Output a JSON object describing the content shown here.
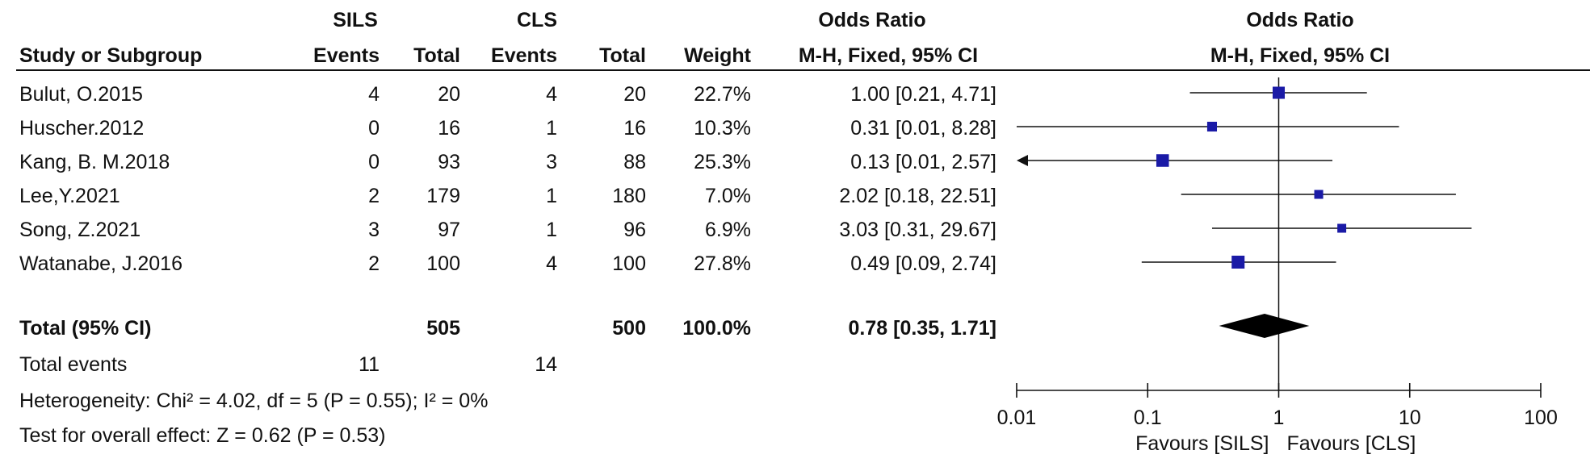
{
  "chart_data": {
    "type": "forest",
    "measure": "Odds Ratio",
    "method": "M-H, Fixed, 95% CI",
    "header": {
      "group1": "SILS",
      "group2": "CLS",
      "study_col": "Study or Subgroup",
      "events": "Events",
      "total": "Total",
      "weight": "Weight",
      "or_title": "Odds Ratio",
      "or_method": "M-H, Fixed, 95% CI"
    },
    "studies": [
      {
        "name": "Bulut, O.2015",
        "e1": "4",
        "n1": "20",
        "e2": "4",
        "n2": "20",
        "weight": "22.7%",
        "ci_text": "1.00 [0.21, 4.71]",
        "or": 1.0,
        "lo": 0.21,
        "hi": 4.71,
        "w": 22.7
      },
      {
        "name": "Huscher.2012",
        "e1": "0",
        "n1": "16",
        "e2": "1",
        "n2": "16",
        "weight": "10.3%",
        "ci_text": "0.31 [0.01, 8.28]",
        "or": 0.31,
        "lo": 0.01,
        "hi": 8.28,
        "w": 10.3
      },
      {
        "name": "Kang, B. M.2018",
        "e1": "0",
        "n1": "93",
        "e2": "3",
        "n2": "88",
        "weight": "25.3%",
        "ci_text": "0.13 [0.01, 2.57]",
        "or": 0.13,
        "lo": 0.01,
        "hi": 2.57,
        "w": 25.3
      },
      {
        "name": "Lee,Y.2021",
        "e1": "2",
        "n1": "179",
        "e2": "1",
        "n2": "180",
        "weight": "7.0%",
        "ci_text": "2.02 [0.18, 22.51]",
        "or": 2.02,
        "lo": 0.18,
        "hi": 22.51,
        "w": 7.0
      },
      {
        "name": "Song, Z.2021",
        "e1": "3",
        "n1": "97",
        "e2": "1",
        "n2": "96",
        "weight": "6.9%",
        "ci_text": "3.03 [0.31, 29.67]",
        "or": 3.03,
        "lo": 0.31,
        "hi": 29.67,
        "w": 6.9
      },
      {
        "name": "Watanabe, J.2016",
        "e1": "2",
        "n1": "100",
        "e2": "4",
        "n2": "100",
        "weight": "27.8%",
        "ci_text": "0.49 [0.09, 2.74]",
        "or": 0.49,
        "lo": 0.09,
        "hi": 2.74,
        "w": 27.8
      }
    ],
    "total": {
      "label": "Total (95% CI)",
      "n1": "505",
      "n2": "500",
      "weight": "100.0%",
      "ci_text": "0.78 [0.35, 1.71]",
      "or": 0.78,
      "lo": 0.35,
      "hi": 1.71
    },
    "total_events": {
      "label": "Total events",
      "e1": "11",
      "e2": "14"
    },
    "heterogeneity": "Heterogeneity: Chi² = 4.02, df = 5 (P = 0.55); I² = 0%",
    "overall_effect": "Test for overall effect: Z = 0.62 (P = 0.53)",
    "axis": {
      "scale": "log",
      "range": [
        0.01,
        100
      ],
      "ticks": [
        0.01,
        0.1,
        1,
        10,
        100
      ],
      "tick_labels": [
        "0.01",
        "0.1",
        "1",
        "10",
        "100"
      ],
      "label_left": "Favours [SILS]",
      "label_right": "Favours [CLS]"
    },
    "colors": {
      "marker": "#1a1aa6",
      "diamond": "#000000",
      "line": "#111111"
    }
  }
}
